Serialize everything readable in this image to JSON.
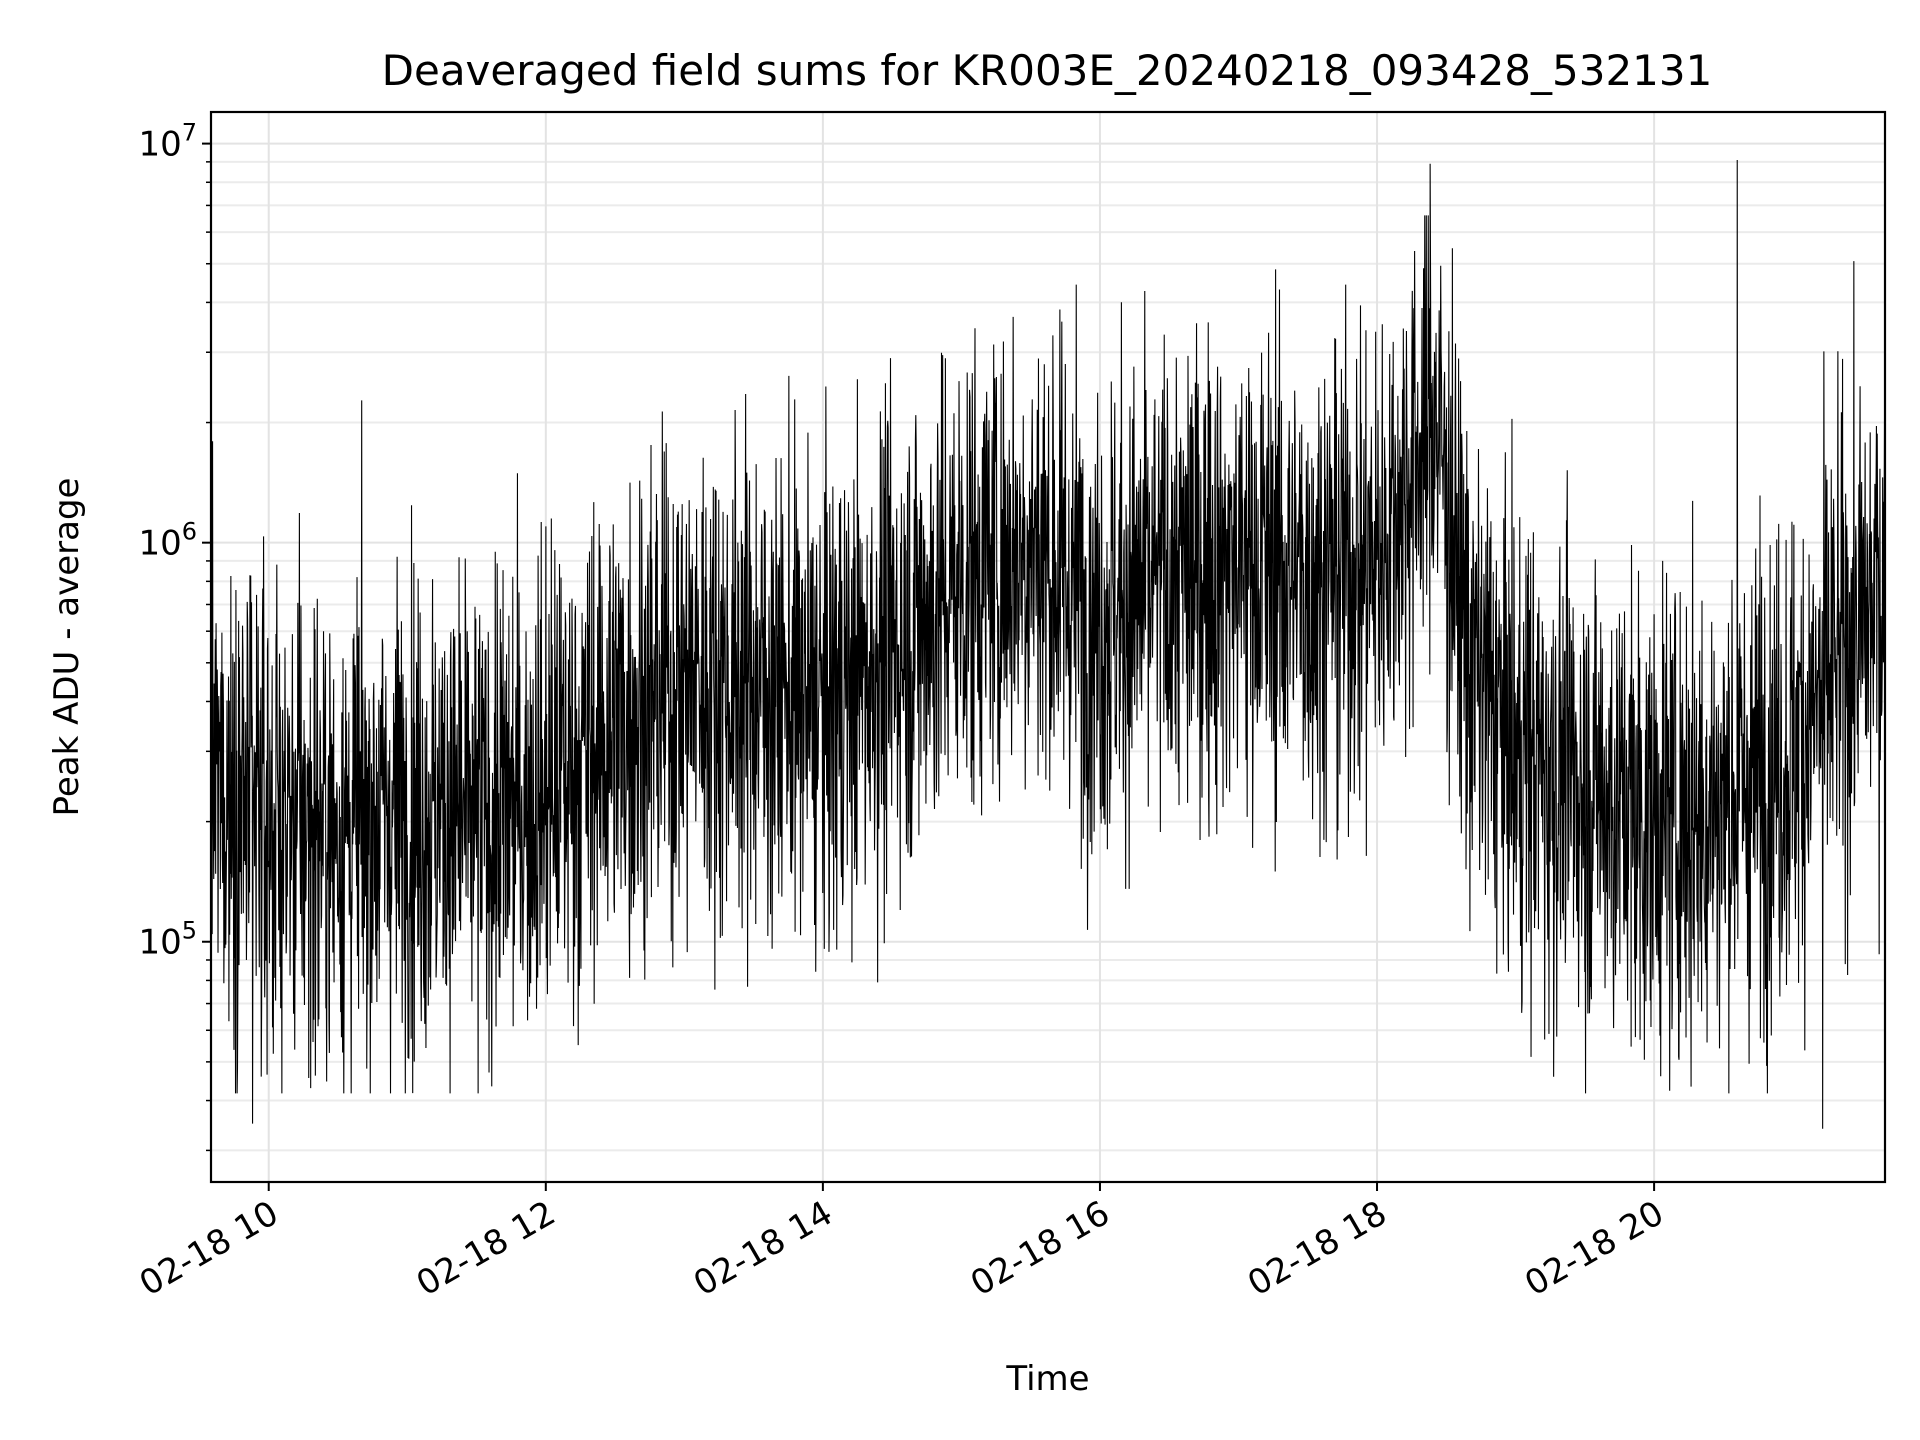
{
  "chart_data": {
    "type": "line",
    "title": "Deaveraged field sums for KR003E_20240218_093428_532131",
    "xlabel": "Time",
    "ylabel": "Peak ADU - average",
    "y_scale": "log",
    "ylim": [
      25000,
      12000000
    ],
    "xlim": [
      "2024-02-18 09:35",
      "2024-02-18 21:40"
    ],
    "grid": true,
    "line_color": "#000000",
    "x_ticks": [
      {
        "value": "2024-02-18 10:00",
        "label": "02-18 10"
      },
      {
        "value": "2024-02-18 12:00",
        "label": "02-18 12"
      },
      {
        "value": "2024-02-18 14:00",
        "label": "02-18 14"
      },
      {
        "value": "2024-02-18 16:00",
        "label": "02-18 16"
      },
      {
        "value": "2024-02-18 18:00",
        "label": "02-18 18"
      },
      {
        "value": "2024-02-18 20:00",
        "label": "02-18 20"
      }
    ],
    "y_ticks": [
      {
        "value": 100000,
        "base": "10",
        "exp": "5"
      },
      {
        "value": 1000000,
        "base": "10",
        "exp": "6"
      },
      {
        "value": 10000000,
        "base": "10",
        "exp": "7"
      }
    ],
    "series": [
      {
        "x": [
          "2024-02-18 09:35",
          "2024-02-18 10:00",
          "2024-02-18 10:30",
          "2024-02-18 11:00",
          "2024-02-18 11:30",
          "2024-02-18 12:00",
          "2024-02-18 12:30",
          "2024-02-18 13:00",
          "2024-02-18 13:30",
          "2024-02-18 14:00",
          "2024-02-18 14:30",
          "2024-02-18 15:00",
          "2024-02-18 15:30",
          "2024-02-18 16:00",
          "2024-02-18 16:30",
          "2024-02-18 17:00",
          "2024-02-18 17:30",
          "2024-02-18 18:00",
          "2024-02-18 18:25",
          "2024-02-18 18:40",
          "2024-02-18 19:00",
          "2024-02-18 19:30",
          "2024-02-18 20:00",
          "2024-02-18 20:30",
          "2024-02-18 21:00",
          "2024-02-18 21:40"
        ],
        "y": [
          250000,
          200000,
          190000,
          220000,
          200000,
          240000,
          350000,
          450000,
          450000,
          380000,
          550000,
          800000,
          1000000,
          650000,
          800000,
          900000,
          800000,
          900000,
          2200000,
          500000,
          300000,
          250000,
          200000,
          220000,
          300000,
          800000
        ]
      }
    ],
    "extremes": [
      {
        "x": "2024-02-18 09:53",
        "y": 35000
      },
      {
        "x": "2024-02-18 18:23",
        "y": 8900000
      },
      {
        "x": "2024-02-18 20:36",
        "y": 9100000
      },
      {
        "x": "2024-02-18 21:13",
        "y": 34000
      }
    ]
  }
}
